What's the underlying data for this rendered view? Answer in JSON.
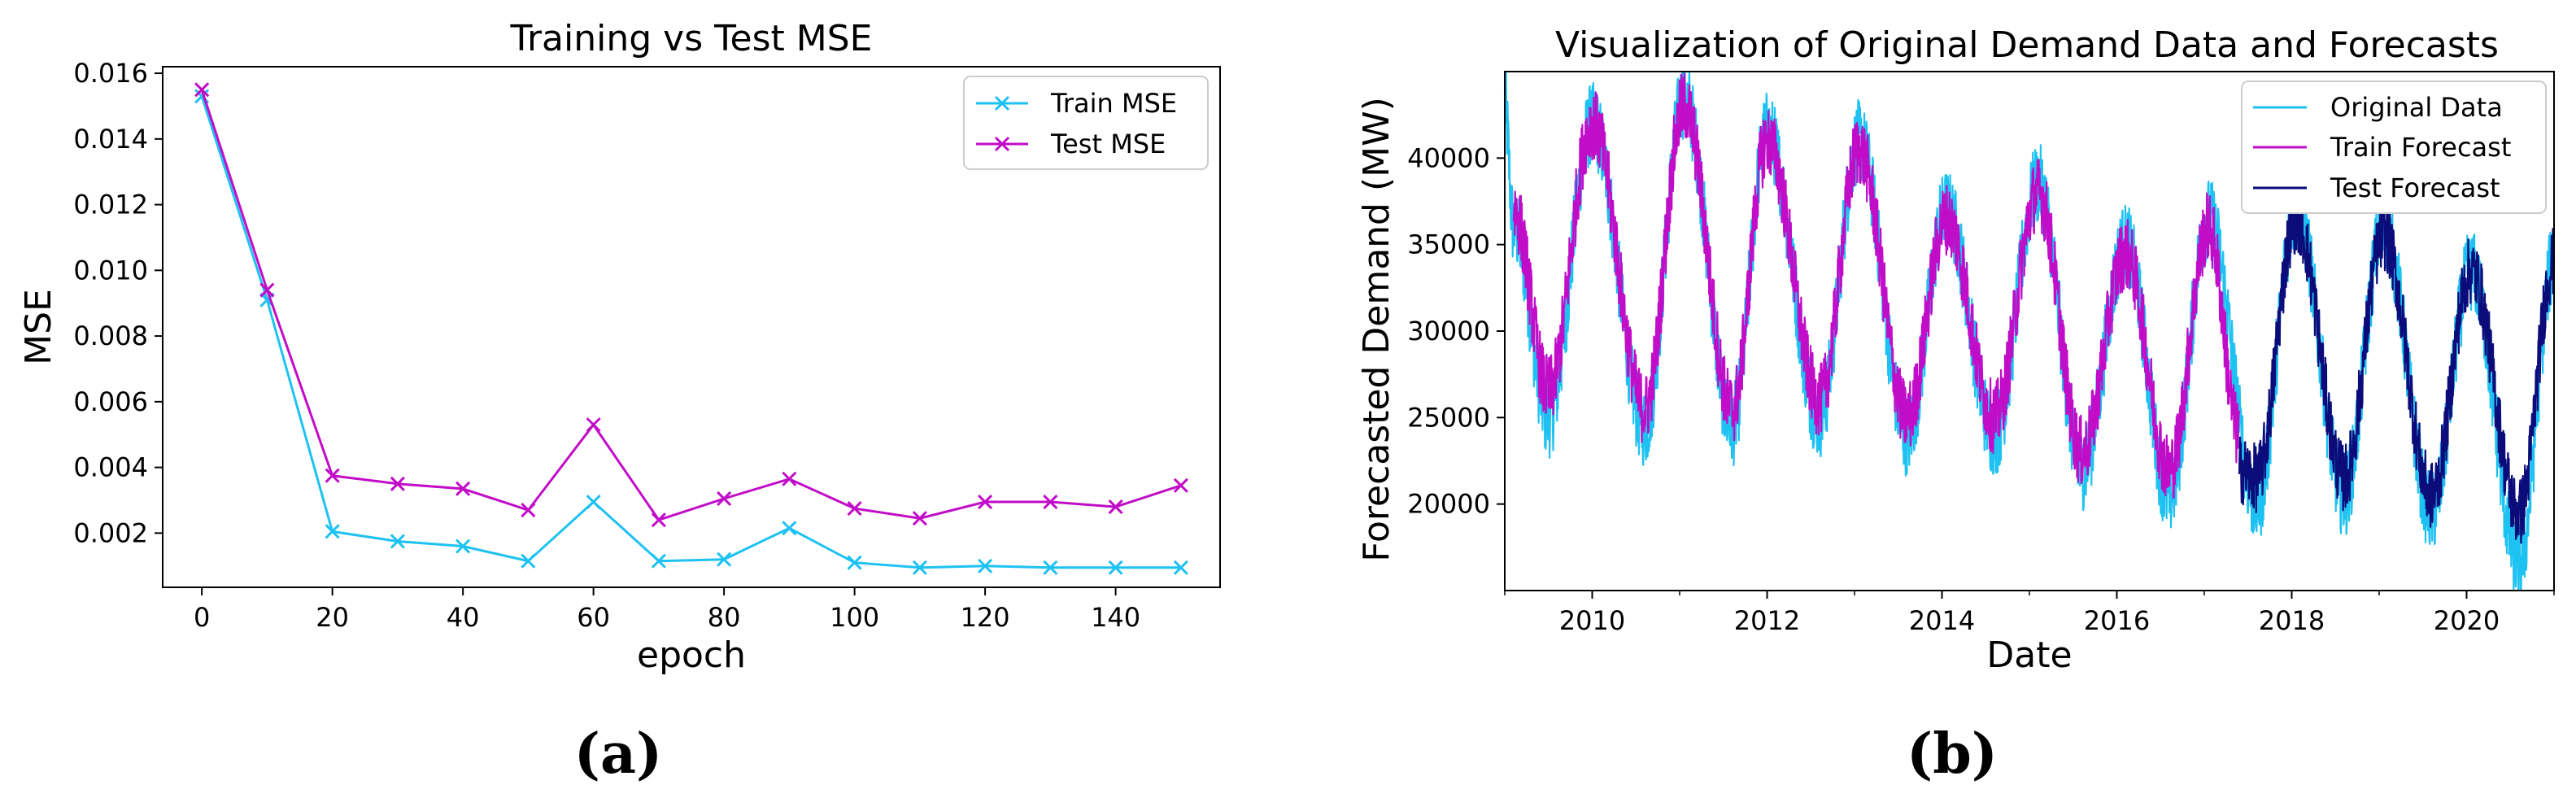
{
  "chart_data": [
    {
      "panel": "(a)",
      "type": "line",
      "title": "Training vs Test MSE",
      "xlabel": "epoch",
      "ylabel": "MSE",
      "xlim": [
        -6,
        156
      ],
      "ylim": [
        0.00035,
        0.0162
      ],
      "xticks": [
        0,
        20,
        40,
        60,
        80,
        100,
        120,
        140
      ],
      "xtick_labels": [
        "0",
        "20",
        "40",
        "60",
        "80",
        "100",
        "120",
        "140"
      ],
      "yticks": [
        0.002,
        0.004,
        0.006,
        0.008,
        0.01,
        0.012,
        0.014,
        0.016
      ],
      "ytick_labels": [
        "0.002",
        "0.004",
        "0.006",
        "0.008",
        "0.010",
        "0.012",
        "0.014",
        "0.016"
      ],
      "x": [
        0,
        10,
        20,
        30,
        40,
        50,
        60,
        70,
        80,
        90,
        100,
        110,
        120,
        130,
        140,
        150
      ],
      "series": [
        {
          "name": "Train MSE",
          "color": "#1ec2f2",
          "marker": "x",
          "values": [
            0.0153,
            0.0091,
            0.00205,
            0.00175,
            0.0016,
            0.00115,
            0.00295,
            0.00115,
            0.0012,
            0.00215,
            0.0011,
            0.00095,
            0.001,
            0.00095,
            0.00095,
            0.00095
          ]
        },
        {
          "name": "Test MSE",
          "color": "#c10cc8",
          "marker": "x",
          "values": [
            0.0155,
            0.0094,
            0.00375,
            0.0035,
            0.00335,
            0.0027,
            0.0053,
            0.0024,
            0.00305,
            0.00365,
            0.00275,
            0.00245,
            0.00295,
            0.00295,
            0.0028,
            0.00345
          ]
        }
      ],
      "legend": "upper-right",
      "caption": "(a)"
    },
    {
      "panel": "(b)",
      "type": "line",
      "title": "Visualization of Original Demand Data and Forecasts",
      "xlabel": "Date",
      "ylabel": "Forecasted Demand (MW)",
      "xlim": [
        2009.0,
        2021.0
      ],
      "ylim": [
        15000,
        45000
      ],
      "xticks": [
        2010,
        2012,
        2014,
        2016,
        2018,
        2020
      ],
      "xtick_labels": [
        "2010",
        "2012",
        "2014",
        "2016",
        "2018",
        "2020"
      ],
      "yticks": [
        20000,
        25000,
        30000,
        35000,
        40000
      ],
      "ytick_labels": [
        "20000",
        "25000",
        "30000",
        "35000",
        "40000"
      ],
      "train_end": 2017.4,
      "series": [
        {
          "name": "Original Data",
          "color": "#1ec2f2",
          "x_range": [
            2009.0,
            2021.0
          ],
          "x": [
            2009.0,
            2009.1,
            2009.5,
            2010.0,
            2010.6,
            2011.05,
            2011.6,
            2012.0,
            2012.6,
            2013.05,
            2013.6,
            2014.05,
            2014.6,
            2015.1,
            2015.6,
            2016.1,
            2016.6,
            2017.05,
            2017.6,
            2018.05,
            2018.6,
            2019.05,
            2019.6,
            2020.05,
            2020.6,
            2021.0
          ],
          "values": [
            43000,
            36000,
            25000,
            42000,
            24500,
            43500,
            24500,
            41500,
            25000,
            41000,
            24000,
            37000,
            24000,
            38500,
            22000,
            35000,
            20500,
            36500,
            20000,
            37000,
            20500,
            36000,
            19500,
            33500,
            16500,
            34000
          ]
        },
        {
          "name": "Train Forecast",
          "color": "#c10cc8",
          "x_range": [
            2009.1,
            2017.4
          ],
          "x": [
            2009.1,
            2009.5,
            2010.0,
            2010.6,
            2011.05,
            2011.6,
            2012.0,
            2012.6,
            2013.05,
            2013.6,
            2014.05,
            2014.6,
            2015.1,
            2015.6,
            2016.1,
            2016.6,
            2017.05,
            2017.4
          ],
          "values": [
            37000,
            26500,
            42000,
            25500,
            43000,
            25500,
            41000,
            26000,
            40500,
            25000,
            36500,
            25000,
            38000,
            23000,
            34500,
            22000,
            36000,
            24000
          ]
        },
        {
          "name": "Test Forecast",
          "color": "#0b0b7a",
          "x_range": [
            2017.4,
            2021.0
          ],
          "x": [
            2017.4,
            2017.6,
            2018.05,
            2018.6,
            2019.05,
            2019.6,
            2020.05,
            2020.6,
            2021.0
          ],
          "values": [
            22000,
            21500,
            36500,
            21500,
            35500,
            20500,
            33500,
            19500,
            34000
          ]
        }
      ],
      "legend": "upper-right",
      "caption": "(b)"
    }
  ]
}
